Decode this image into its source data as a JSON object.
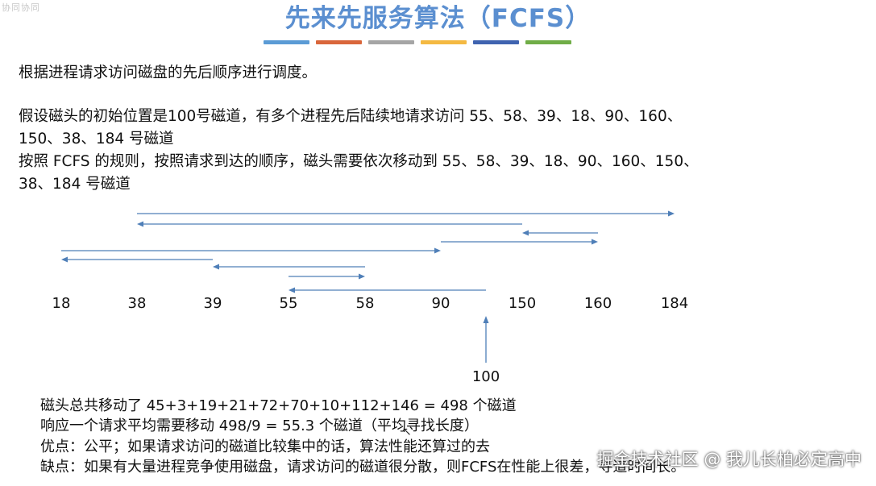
{
  "logo_text": "协同协同",
  "title": "先来先服务算法（FCFS）",
  "title_bar_colors": [
    "#5b9bd5",
    "#d9663b",
    "#a5a5a5",
    "#f4b942",
    "#3f63b0",
    "#70ad47"
  ],
  "paragraphs": [
    "根据进程请求访问磁盘的先后顺序进行调度。",
    "假设磁头的初始位置是100号磁道，有多个进程先后陆续地请求访问 55、58、39、18、90、160、",
    "150、38、184 号磁道",
    "按照 FCFS 的规则，按照请求到达的顺序，磁头需要依次移动到 55、58、39、18、90、160、150、",
    "38、184 号磁道"
  ],
  "diagram": {
    "tracks": [
      "18",
      "38",
      "39",
      "55",
      "58",
      "90",
      "150",
      "160",
      "184"
    ],
    "start_label": "100",
    "start_track": 100,
    "sequence": [
      100,
      55,
      58,
      39,
      18,
      90,
      160,
      150,
      38,
      184
    ],
    "arrow_color": "#4f7fb8"
  },
  "bottom": [
    "磁头总共移动了  45+3+19+21+72+70+10+112+146 = 498  个磁道",
    "响应一个请求平均需要移动 498/9 = 55.3 个磁道（平均寻找长度）",
    "优点：公平；如果请求访问的磁道比较集中的话，算法性能还算过的去",
    "缺点：如果有大量进程竞争使用磁盘，请求访问的磁道很分散，则FCFS在性能上很差，寻道时间长。"
  ],
  "watermark": "掘金技术社区 @ 我儿长柏必定高中",
  "cursor_icon": "mouse-cursor-icon"
}
